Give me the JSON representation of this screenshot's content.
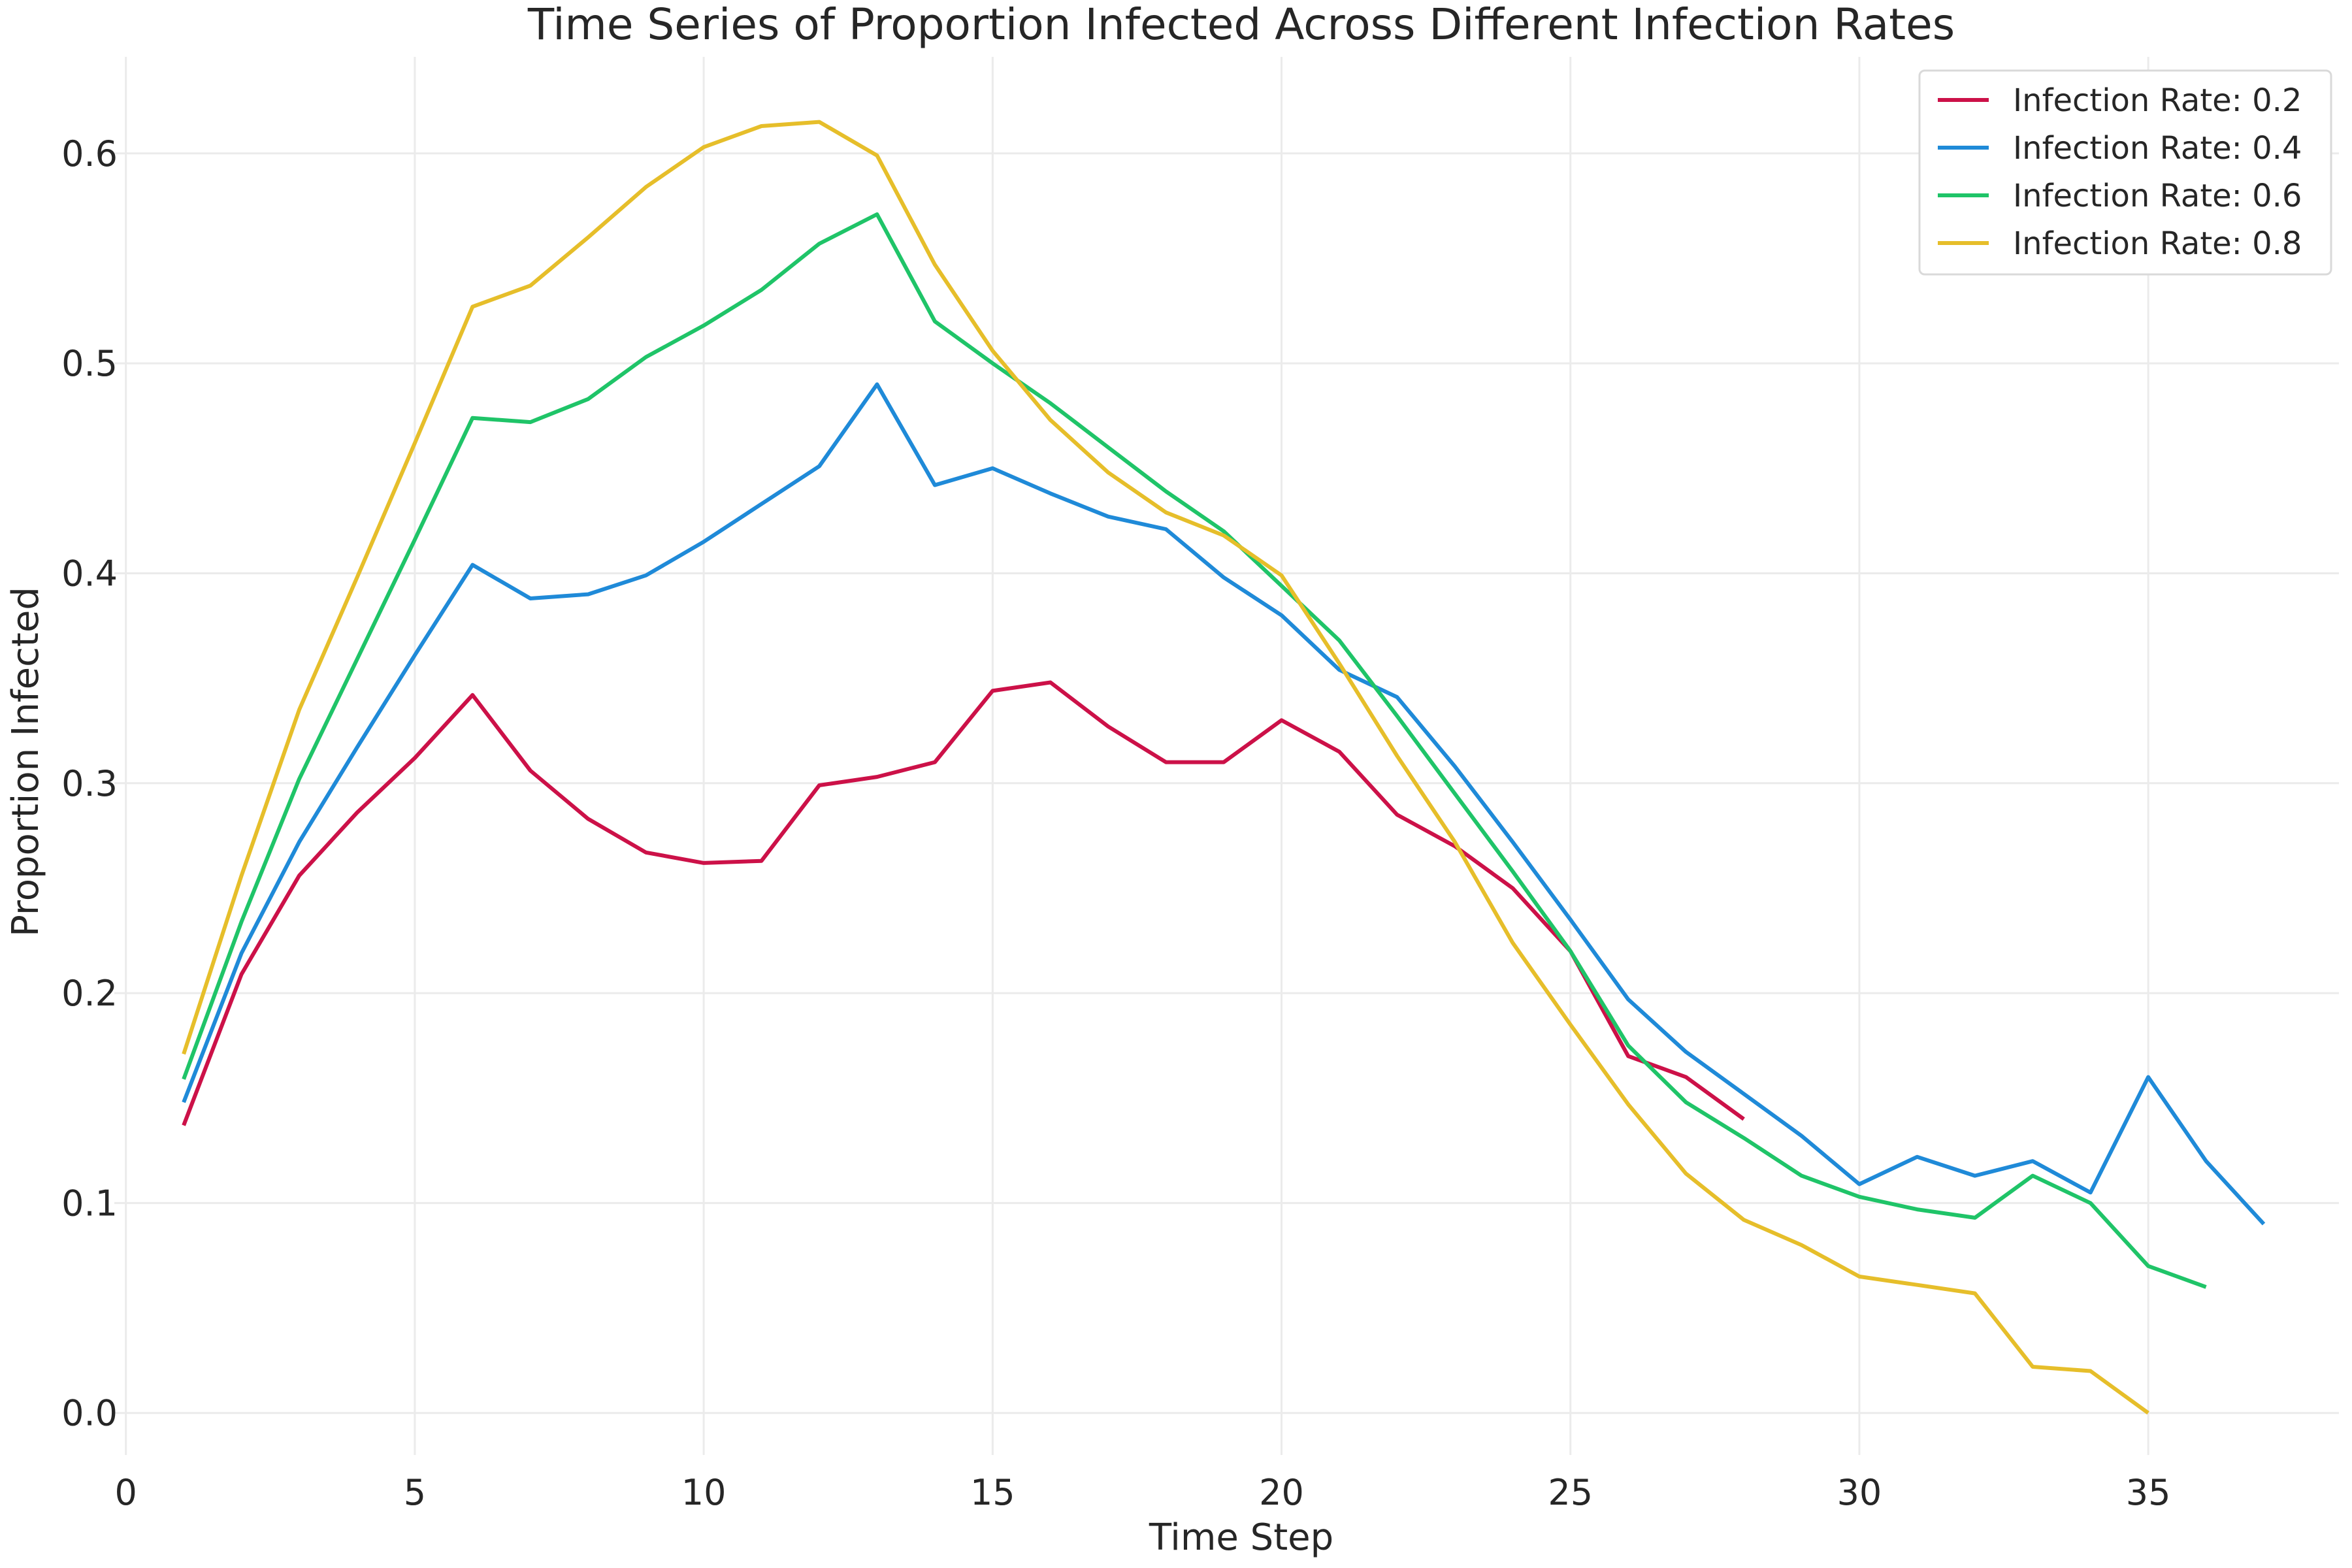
{
  "chart_data": {
    "type": "line",
    "title": "Time Series of Proportion Infected Across Different Infection Rates",
    "xlabel": "Time Step",
    "ylabel": "Proportion Infected",
    "xlim": [
      -0.2,
      38.3
    ],
    "ylim": [
      -0.02,
      0.646
    ],
    "xticks": [
      0,
      5,
      10,
      15,
      20,
      25,
      30,
      35
    ],
    "xtick_labels": [
      "0",
      "5",
      "10",
      "15",
      "20",
      "25",
      "30",
      "35"
    ],
    "yticks": [
      0.0,
      0.1,
      0.2,
      0.3,
      0.4,
      0.5,
      0.6
    ],
    "ytick_labels": [
      "0.0",
      "0.1",
      "0.2",
      "0.3",
      "0.4",
      "0.5",
      "0.6"
    ],
    "grid": true,
    "legend_position": "top-right",
    "series": [
      {
        "name": "Infection Rate: 0.2",
        "color": "#cc1148",
        "x": [
          1,
          2,
          3,
          4,
          5,
          6,
          7,
          8,
          9,
          10,
          11,
          12,
          13,
          14,
          15,
          16,
          17,
          18,
          19,
          20,
          21,
          22,
          23,
          24,
          25,
          26,
          27,
          28
        ],
        "y": [
          0.137,
          0.209,
          0.256,
          0.286,
          0.312,
          0.342,
          0.306,
          0.283,
          0.267,
          0.262,
          0.263,
          0.299,
          0.303,
          0.31,
          0.344,
          0.348,
          0.327,
          0.31,
          0.31,
          0.33,
          0.315,
          0.285,
          0.27,
          0.25,
          0.22,
          0.17,
          0.16,
          0.14
        ]
      },
      {
        "name": "Infection Rate: 0.4",
        "color": "#1f8ad8",
        "x": [
          1,
          2,
          3,
          4,
          5,
          6,
          7,
          8,
          9,
          10,
          11,
          12,
          13,
          14,
          15,
          16,
          17,
          18,
          19,
          20,
          21,
          22,
          23,
          24,
          25,
          26,
          27,
          28,
          29,
          30,
          31,
          32,
          33,
          34,
          35,
          36,
          37
        ],
        "y": [
          0.148,
          0.219,
          0.272,
          0.317,
          0.361,
          0.404,
          0.388,
          0.39,
          0.399,
          0.415,
          0.433,
          0.451,
          0.49,
          0.442,
          0.45,
          0.438,
          0.427,
          0.421,
          0.398,
          0.38,
          0.354,
          0.341,
          0.308,
          0.272,
          0.235,
          0.197,
          0.172,
          0.152,
          0.132,
          0.109,
          0.122,
          0.113,
          0.12,
          0.105,
          0.16,
          0.12,
          0.09
        ]
      },
      {
        "name": "Infection Rate: 0.6",
        "color": "#1fc468",
        "x": [
          1,
          2,
          3,
          4,
          5,
          6,
          7,
          8,
          9,
          10,
          11,
          12,
          13,
          14,
          15,
          16,
          17,
          18,
          19,
          20,
          21,
          22,
          23,
          24,
          25,
          26,
          27,
          28,
          29,
          30,
          31,
          32,
          33,
          34,
          35,
          36
        ],
        "y": [
          0.159,
          0.234,
          0.302,
          0.359,
          0.416,
          0.474,
          0.472,
          0.483,
          0.503,
          0.518,
          0.535,
          0.557,
          0.571,
          0.52,
          0.5,
          0.481,
          0.46,
          0.439,
          0.42,
          0.394,
          0.368,
          0.332,
          0.295,
          0.258,
          0.22,
          0.175,
          0.148,
          0.131,
          0.113,
          0.103,
          0.097,
          0.093,
          0.113,
          0.1,
          0.07,
          0.06
        ]
      },
      {
        "name": "Infection Rate: 0.8",
        "color": "#e6be2a",
        "x": [
          1,
          2,
          3,
          4,
          5,
          6,
          7,
          8,
          9,
          10,
          11,
          12,
          13,
          14,
          15,
          16,
          17,
          18,
          19,
          20,
          21,
          22,
          23,
          24,
          25,
          26,
          27,
          28,
          29,
          30,
          31,
          32,
          33,
          34,
          35
        ],
        "y": [
          0.171,
          0.256,
          0.335,
          0.398,
          0.462,
          0.527,
          0.537,
          0.56,
          0.584,
          0.603,
          0.613,
          0.615,
          0.599,
          0.547,
          0.506,
          0.473,
          0.448,
          0.429,
          0.418,
          0.399,
          0.357,
          0.313,
          0.272,
          0.224,
          0.185,
          0.147,
          0.114,
          0.092,
          0.08,
          0.065,
          0.061,
          0.057,
          0.022,
          0.02,
          0.0
        ]
      }
    ]
  }
}
